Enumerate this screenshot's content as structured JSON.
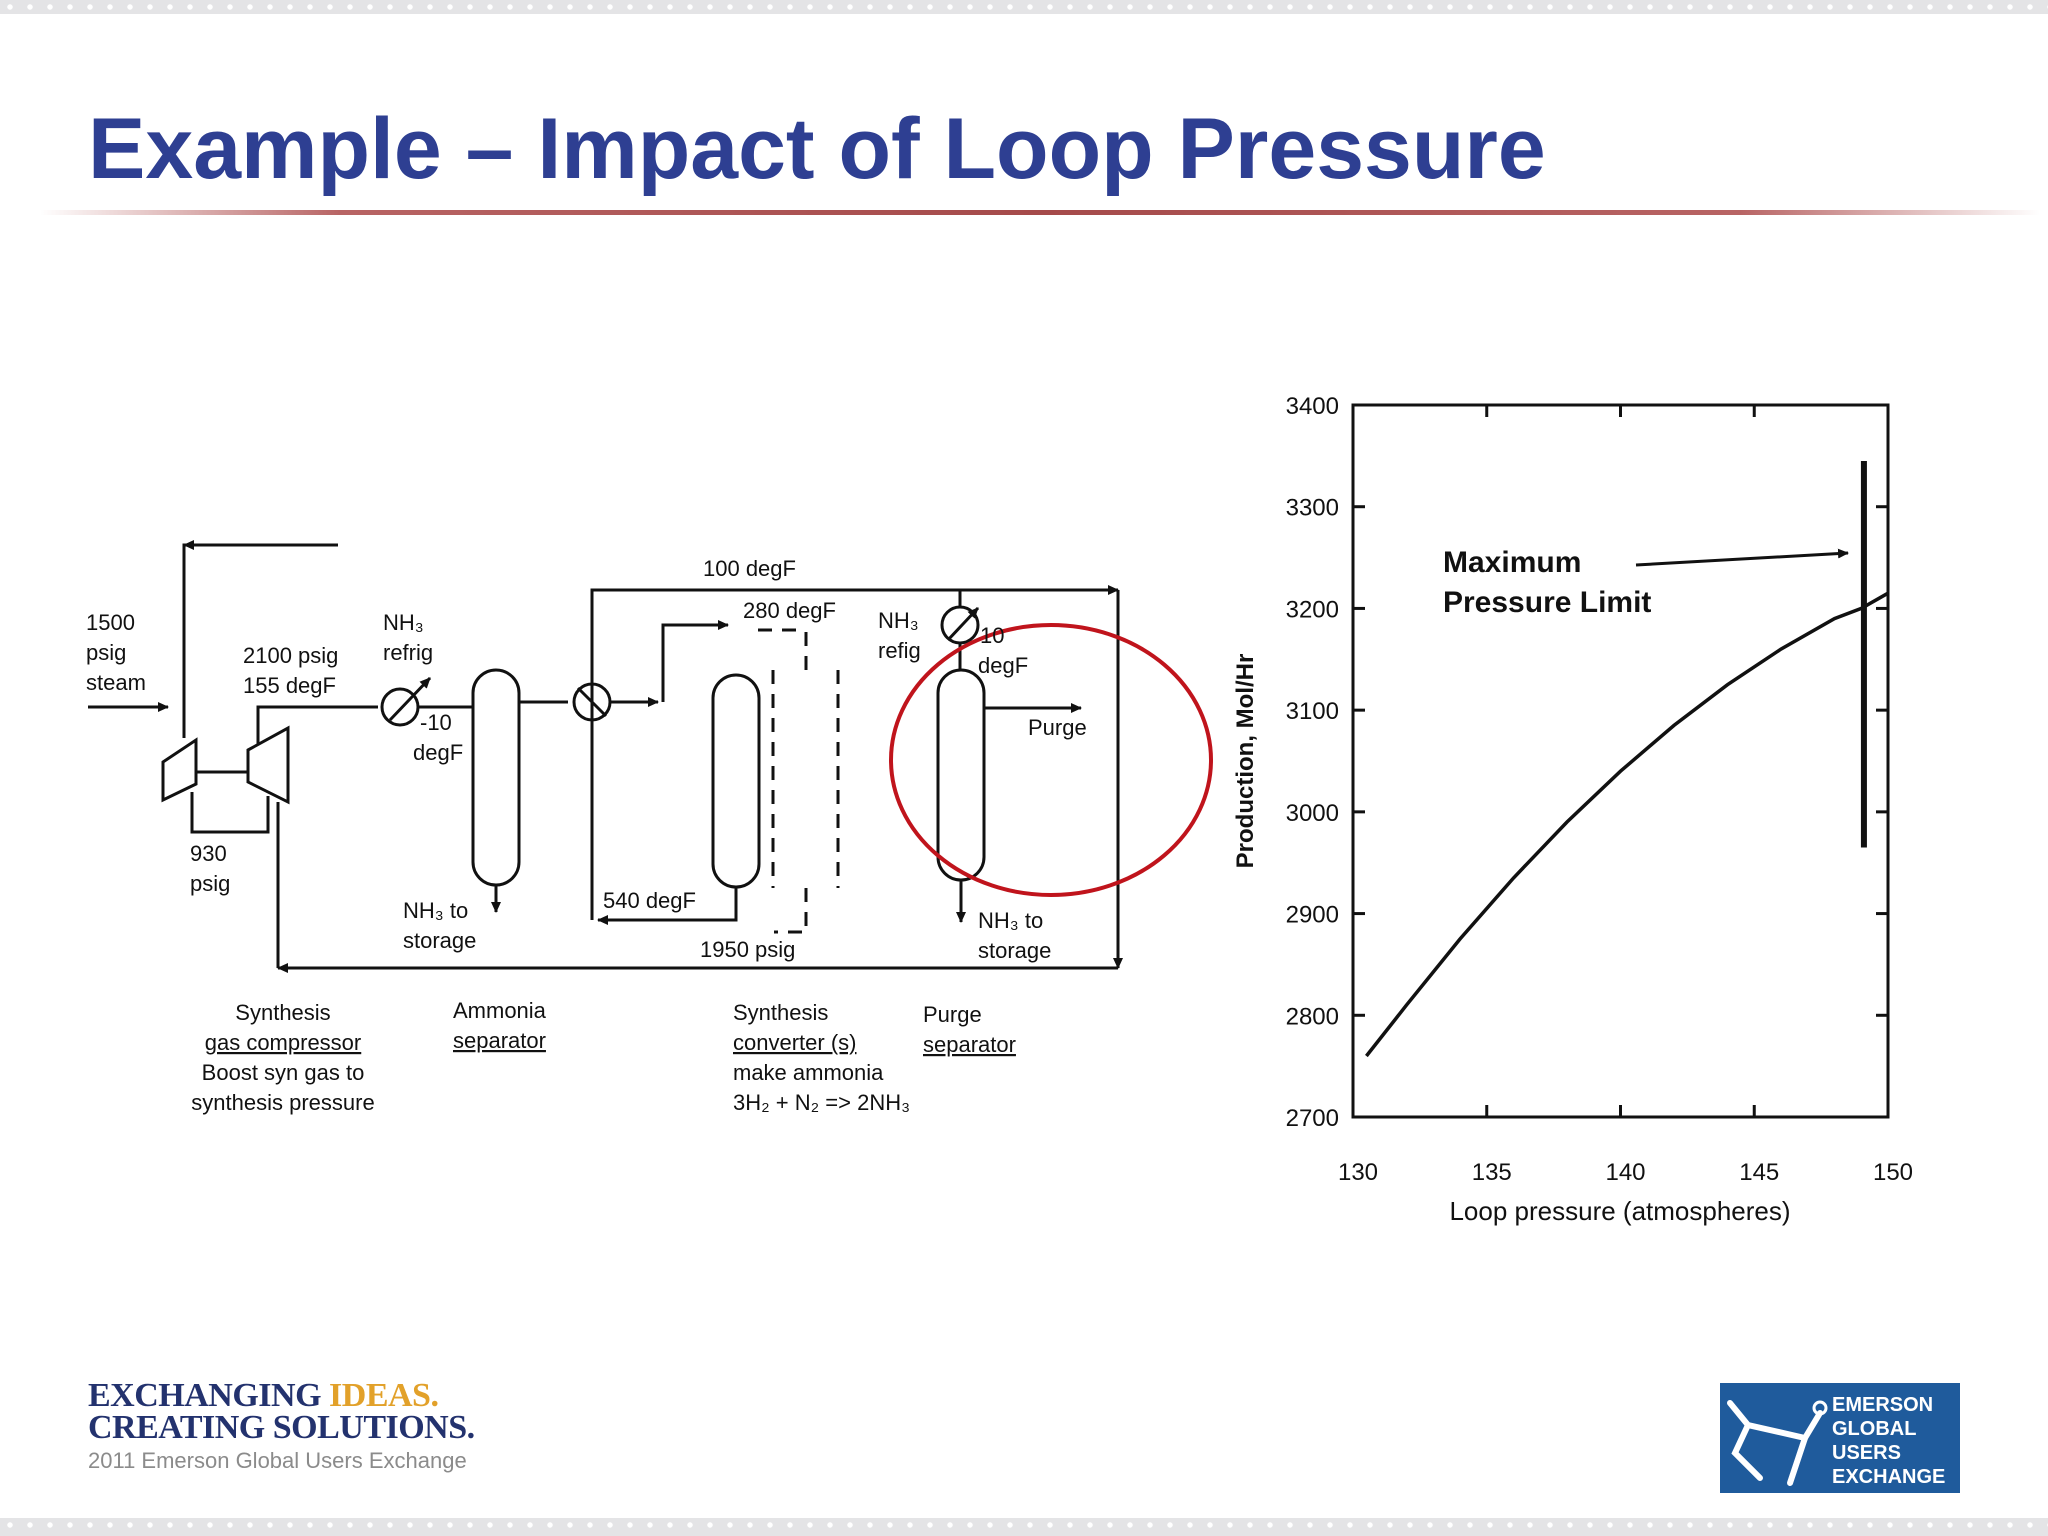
{
  "slide": {
    "title": "Example – Impact of Loop Pressure"
  },
  "diagram": {
    "inlet": [
      "1500",
      "psig",
      "steam"
    ],
    "compressor_out": [
      "2100 psig",
      "155 degF"
    ],
    "recycle_pressure": [
      "930",
      "psig"
    ],
    "refrig_1": [
      "NH₃",
      "refrig"
    ],
    "refrig_1_temp": [
      "-10",
      "degF"
    ],
    "top_temp": "100 degF",
    "converter_temp": "280 degF",
    "refrig_2": [
      "NH₃",
      "refig"
    ],
    "refrig_2_temp": [
      "10",
      "degF"
    ],
    "purge": "Purge",
    "bottom_temp": "540 degF",
    "bottom_pressure": "1950 psig",
    "storage_1": [
      "NH₃ to",
      "storage"
    ],
    "storage_2": [
      "NH₃ to",
      "storage"
    ],
    "label_compressor": [
      "Synthesis",
      "gas compressor",
      "Boost syn gas to",
      "synthesis pressure"
    ],
    "label_separator": [
      "Ammonia",
      "separator"
    ],
    "label_converter": [
      "Synthesis",
      "converter (s)",
      "make ammonia",
      "3H₂ + N₂ => 2NH₃"
    ],
    "label_purge": [
      "Purge",
      "separator"
    ],
    "highlight_color": "#c0141c"
  },
  "chart_data": {
    "type": "line",
    "ylabel": "Production, Mol/Hr",
    "xlabel": "Loop pressure (atmospheres)",
    "xlim": [
      130,
      150
    ],
    "ylim": [
      2700,
      3400
    ],
    "xticks": [
      "130",
      "135",
      "140",
      "145",
      "150"
    ],
    "yticks": [
      "3400",
      "3300",
      "3200",
      "3100",
      "3000",
      "2900",
      "2800",
      "2700"
    ],
    "series": [
      {
        "x": [
          130.5,
          132,
          134,
          136,
          138,
          140,
          142,
          144,
          146,
          148,
          149,
          150
        ],
        "y": [
          2760,
          2810,
          2875,
          2935,
          2990,
          3040,
          3085,
          3125,
          3160,
          3190,
          3200,
          3215
        ]
      }
    ],
    "limit_line": {
      "x": 149.1,
      "ymin": 2965,
      "ymax": 3345
    },
    "annotation": [
      "Maximum",
      "Pressure Limit"
    ]
  },
  "footer": {
    "tag_line1_a": "EXCHANGING",
    "tag_line1_b": "IDEAS.",
    "tag_line2_a": "CREATING",
    "tag_line2_b": "SOLUTIONS.",
    "subtag": "2011 Emerson Global Users Exchange",
    "logo_lines": [
      "EMERSON",
      "GLOBAL",
      "USERS",
      "EXCHANGE"
    ],
    "brand_navy": "#23326e",
    "brand_gold": "#e2a12a",
    "logo_blue": "#1f5b9c"
  }
}
